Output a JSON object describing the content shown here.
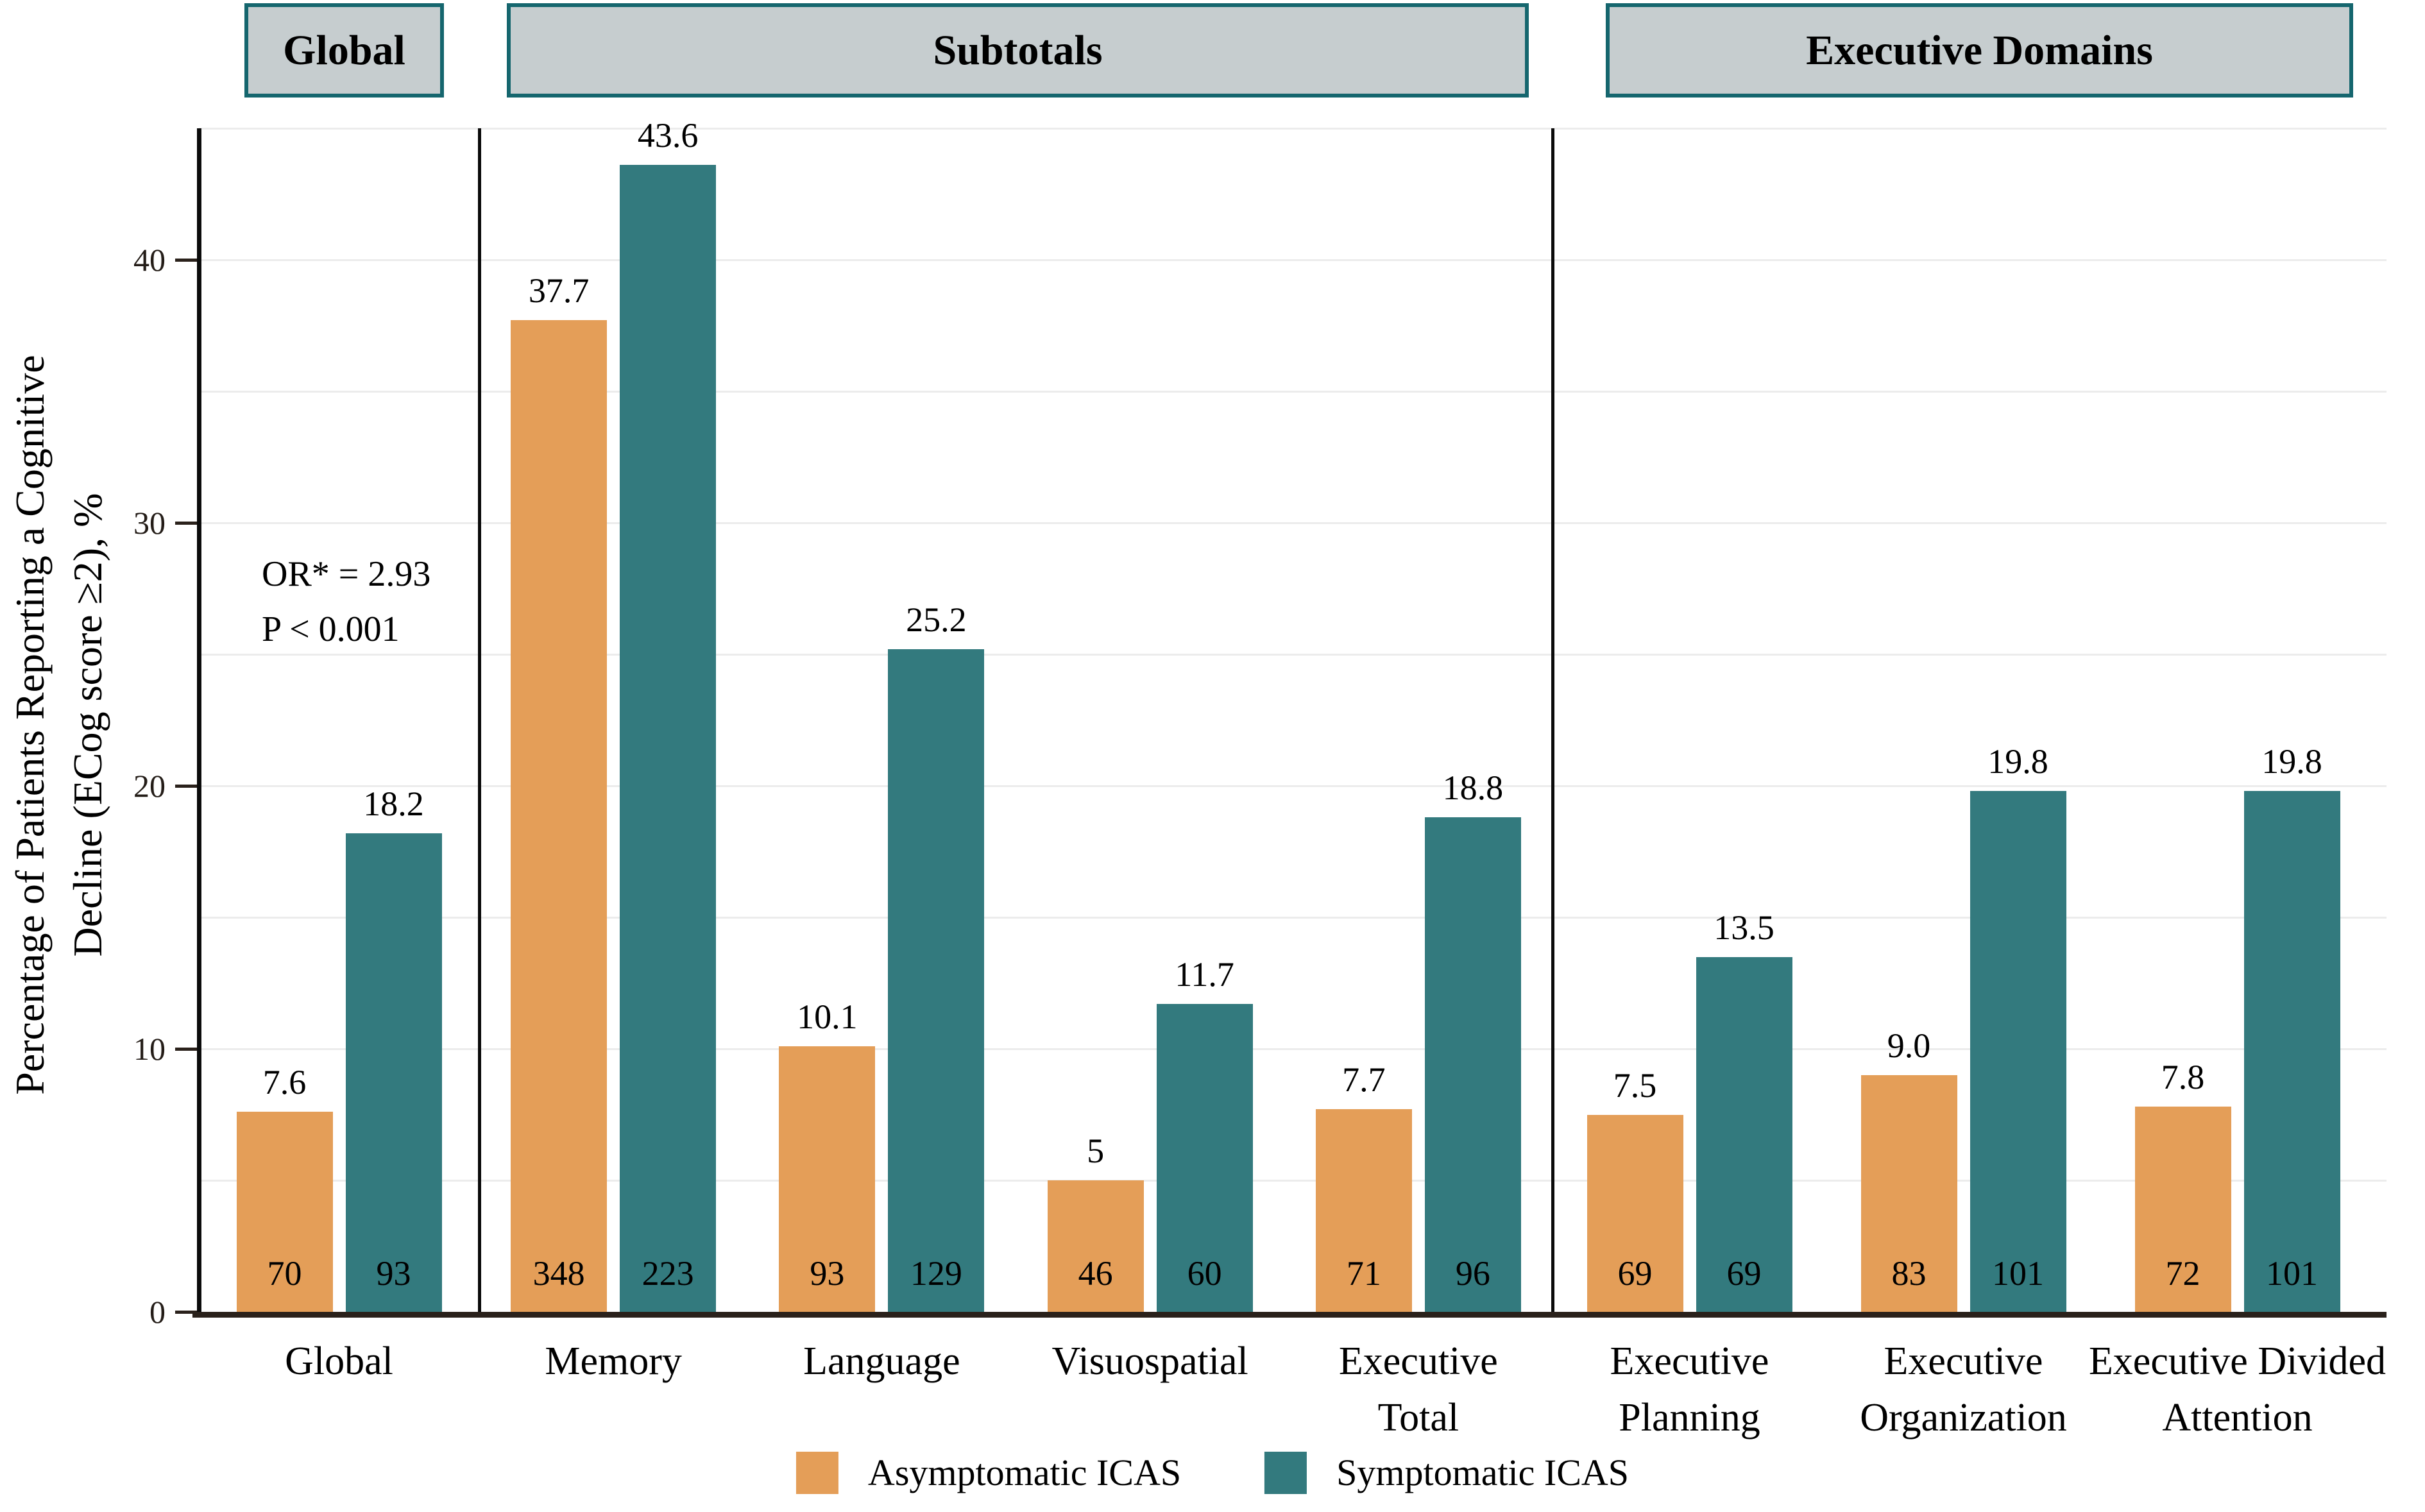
{
  "headers": {
    "global": "Global",
    "subtotals": "Subtotals",
    "executive_domains": "Executive Domains"
  },
  "y_axis": {
    "title_line1": "Percentage of Patients Reporting a Cognitive",
    "title_line2": "Decline (ECog score ≥2), %",
    "ticks": [
      "0",
      "10",
      "20",
      "30",
      "40"
    ]
  },
  "annotation": {
    "line1": "OR* = 2.93",
    "line2": "P < 0.001"
  },
  "legend": [
    {
      "label": "Asymptomatic ICAS",
      "color": "#E49E58"
    },
    {
      "label": "Symptomatic ICAS",
      "color": "#337A7E"
    }
  ],
  "chart_data": {
    "type": "bar",
    "title": "",
    "xlabel": "",
    "ylabel": "Percentage of Patients Reporting a Cognitive Decline (ECog score ≥2), %",
    "ylim": [
      0,
      45
    ],
    "gridline_step": 5,
    "grid": "horizontal, light gray, every 5",
    "legend_position": "bottom",
    "annotation": "OR* = 2.93, P < 0.001 (Global section)",
    "section_groups": [
      {
        "label": "Global",
        "categories": [
          "Global"
        ]
      },
      {
        "label": "Subtotals",
        "categories": [
          "Memory",
          "Language",
          "Visuospatial",
          "Executive Total"
        ]
      },
      {
        "label": "Executive Domains",
        "categories": [
          "Executive Planning",
          "Executive Organization",
          "Executive Divided Attention"
        ]
      }
    ],
    "categories": [
      "Global",
      "Memory",
      "Language",
      "Visuospatial",
      "Executive Total",
      "Executive Planning",
      "Executive Organization",
      "Executive Divided Attention"
    ],
    "category_label_lines": [
      [
        "Global"
      ],
      [
        "Memory"
      ],
      [
        "Language"
      ],
      [
        "Visuospatial"
      ],
      [
        "Executive",
        "Total"
      ],
      [
        "Executive",
        "Planning"
      ],
      [
        "Executive",
        "Organization"
      ],
      [
        "Executive Divided",
        "Attention"
      ]
    ],
    "series": [
      {
        "name": "Asymptomatic ICAS",
        "color": "#E49E58",
        "values": [
          7.6,
          37.7,
          10.1,
          5,
          7.7,
          7.5,
          9.0,
          7.8
        ],
        "value_labels": [
          "7.6",
          "37.7",
          "10.1",
          "5",
          "7.7",
          "7.5",
          "9.0",
          "7.8"
        ],
        "counts": [
          "70",
          "348",
          "93",
          "46",
          "71",
          "69",
          "83",
          "72"
        ]
      },
      {
        "name": "Symptomatic ICAS",
        "color": "#337A7E",
        "values": [
          18.2,
          43.6,
          25.2,
          11.7,
          18.8,
          13.5,
          19.8,
          19.8
        ],
        "value_labels": [
          "18.2",
          "43.6",
          "25.2",
          "11.7",
          "18.8",
          "13.5",
          "19.8",
          "19.8"
        ],
        "counts": [
          "93",
          "223",
          "129",
          "60",
          "96",
          "69",
          "101",
          "101"
        ]
      }
    ]
  }
}
